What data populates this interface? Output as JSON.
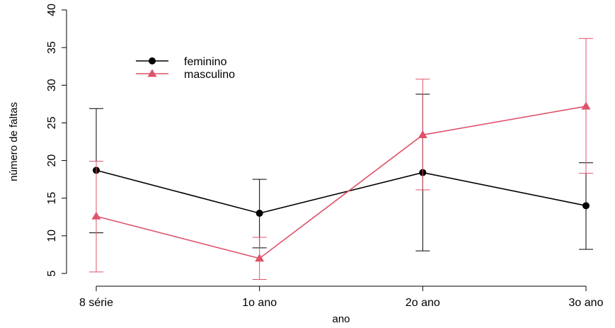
{
  "chart_data": {
    "type": "line",
    "title": "",
    "xlabel": "ano",
    "ylabel": "número de faltas",
    "categories": [
      "8 série",
      "1o ano",
      "2o ano",
      "3o ano"
    ],
    "ylim": [
      5,
      40
    ],
    "yticks": [
      5,
      10,
      15,
      20,
      25,
      30,
      35,
      40
    ],
    "grid": false,
    "legend_position": "top-left",
    "series": [
      {
        "name": "feminino",
        "color": "#000000",
        "marker": "circle",
        "values": [
          18.7,
          13.0,
          18.4,
          14.0
        ],
        "err_low": [
          10.4,
          8.4,
          8.0,
          8.2
        ],
        "err_high": [
          26.9,
          17.5,
          28.8,
          19.7
        ]
      },
      {
        "name": "masculino",
        "color": "#DF536B",
        "marker": "triangle",
        "values": [
          12.6,
          7.0,
          23.4,
          27.2
        ],
        "err_low": [
          5.2,
          4.2,
          16.1,
          18.3
        ],
        "err_high": [
          19.9,
          9.8,
          30.8,
          36.2
        ]
      }
    ]
  }
}
